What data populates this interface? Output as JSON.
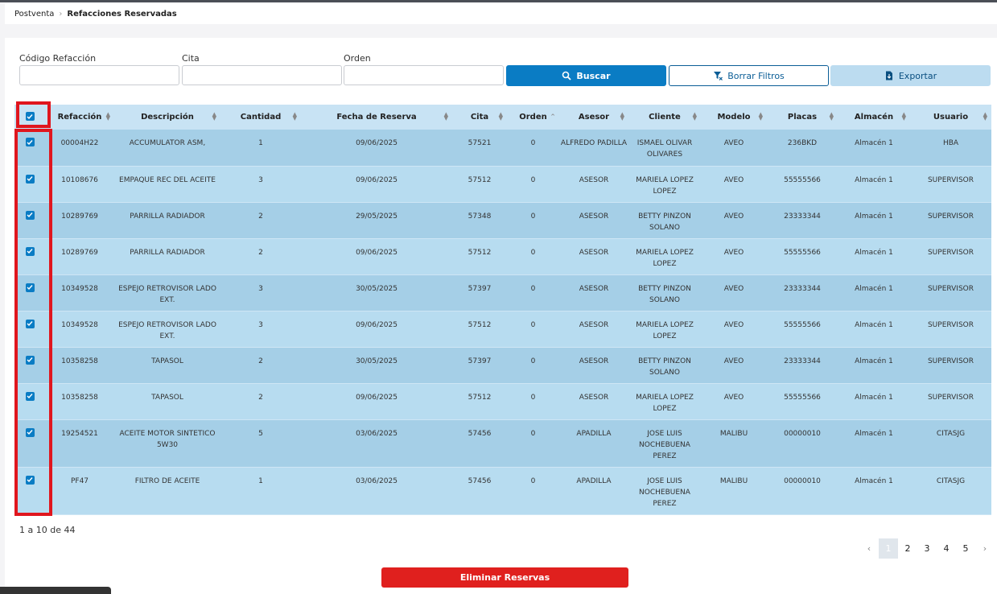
{
  "breadcrumb": {
    "root": "Postventa",
    "current": "Refacciones Reservadas"
  },
  "filters": {
    "codigo_label": "Código Refacción",
    "cita_label": "Cita",
    "orden_label": "Orden",
    "codigo_value": "",
    "cita_value": "",
    "orden_value": ""
  },
  "buttons": {
    "search": "Buscar",
    "clear": "Borrar Filtros",
    "export": "Exportar",
    "delete": "Eliminar Reservas"
  },
  "table": {
    "headers": [
      "Refacción",
      "Descripción",
      "Cantidad",
      "Fecha de Reserva",
      "Cita",
      "Orden",
      "Asesor",
      "Cliente",
      "Modelo",
      "Placas",
      "Almacén",
      "Usuario"
    ],
    "rows": [
      [
        "00004H22",
        "ACCUMULATOR ASM,",
        "1",
        "09/06/2025",
        "57521",
        "0",
        "ALFREDO PADILLA",
        "ISMAEL OLIVAR OLIVARES",
        "AVEO",
        "236BKD",
        "Almacén 1",
        "HBA"
      ],
      [
        "10108676",
        "EMPAQUE REC DEL ACEITE",
        "3",
        "09/06/2025",
        "57512",
        "0",
        "ASESOR",
        "MARIELA LOPEZ LOPEZ",
        "AVEO",
        "55555566",
        "Almacén 1",
        "SUPERVISOR"
      ],
      [
        "10289769",
        "PARRILLA RADIADOR",
        "2",
        "29/05/2025",
        "57348",
        "0",
        "ASESOR",
        "BETTY PINZON SOLANO",
        "AVEO",
        "23333344",
        "Almacén 1",
        "SUPERVISOR"
      ],
      [
        "10289769",
        "PARRILLA RADIADOR",
        "2",
        "09/06/2025",
        "57512",
        "0",
        "ASESOR",
        "MARIELA LOPEZ LOPEZ",
        "AVEO",
        "55555566",
        "Almacén 1",
        "SUPERVISOR"
      ],
      [
        "10349528",
        "ESPEJO RETROVISOR LADO EXT.",
        "3",
        "30/05/2025",
        "57397",
        "0",
        "ASESOR",
        "BETTY PINZON SOLANO",
        "AVEO",
        "23333344",
        "Almacén 1",
        "SUPERVISOR"
      ],
      [
        "10349528",
        "ESPEJO RETROVISOR LADO EXT.",
        "3",
        "09/06/2025",
        "57512",
        "0",
        "ASESOR",
        "MARIELA LOPEZ LOPEZ",
        "AVEO",
        "55555566",
        "Almacén 1",
        "SUPERVISOR"
      ],
      [
        "10358258",
        "TAPASOL",
        "2",
        "30/05/2025",
        "57397",
        "0",
        "ASESOR",
        "BETTY PINZON SOLANO",
        "AVEO",
        "23333344",
        "Almacén 1",
        "SUPERVISOR"
      ],
      [
        "10358258",
        "TAPASOL",
        "2",
        "09/06/2025",
        "57512",
        "0",
        "ASESOR",
        "MARIELA LOPEZ LOPEZ",
        "AVEO",
        "55555566",
        "Almacén 1",
        "SUPERVISOR"
      ],
      [
        "19254521",
        "ACEITE MOTOR SINTETICO 5W30",
        "5",
        "03/06/2025",
        "57456",
        "0",
        "APADILLA",
        "JOSE LUIS NOCHEBUENA PEREZ",
        "MALIBU",
        "00000010",
        "Almacén 1",
        "CITASJG"
      ],
      [
        "PF47",
        "FILTRO DE ACEITE",
        "1",
        "03/06/2025",
        "57456",
        "0",
        "APADILLA",
        "JOSE LUIS NOCHEBUENA PEREZ",
        "MALIBU",
        "00000010",
        "Almacén 1",
        "CITASJG"
      ]
    ]
  },
  "pagination": {
    "info": "1 a 10 de 44",
    "pages": [
      "1",
      "2",
      "3",
      "4",
      "5"
    ],
    "current": "1",
    "prev": "‹",
    "next": "›"
  },
  "colors": {
    "accent": "#0a7cc4",
    "danger": "#e0201e",
    "highlight": "#e0161e"
  },
  "icons": {
    "search": "search-icon",
    "clear": "filter-clear-icon",
    "export": "file-export-icon",
    "checkbox": "check-icon"
  }
}
